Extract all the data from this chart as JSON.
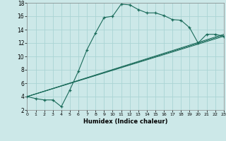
{
  "xlabel": "Humidex (Indice chaleur)",
  "background_color": "#cce8e8",
  "grid_color": "#aad4d4",
  "line_color": "#1a6b5a",
  "xlim": [
    0,
    23
  ],
  "ylim": [
    2,
    18
  ],
  "xticks": [
    0,
    1,
    2,
    3,
    4,
    5,
    6,
    7,
    8,
    9,
    10,
    11,
    12,
    13,
    14,
    15,
    16,
    17,
    18,
    19,
    20,
    21,
    22,
    23
  ],
  "yticks": [
    2,
    4,
    6,
    8,
    10,
    12,
    14,
    16,
    18
  ],
  "curve1_x": [
    0,
    1,
    2,
    3,
    4,
    5,
    6,
    7,
    8,
    9,
    10,
    11,
    12,
    13,
    14,
    15,
    16,
    17,
    18,
    19,
    20,
    21,
    22,
    23
  ],
  "curve1_y": [
    4.0,
    3.7,
    3.5,
    3.5,
    2.5,
    5.0,
    7.8,
    11.0,
    13.5,
    15.8,
    16.0,
    17.8,
    17.7,
    17.0,
    16.5,
    16.5,
    16.1,
    15.5,
    15.4,
    14.3,
    12.0,
    13.3,
    13.3,
    13.0
  ],
  "curve2_x": [
    0,
    23
  ],
  "curve2_y": [
    4.0,
    13.0
  ],
  "curve3_x": [
    0,
    23
  ],
  "curve3_y": [
    4.0,
    13.15
  ],
  "curve4_x": [
    0,
    23
  ],
  "curve4_y": [
    4.0,
    13.3
  ]
}
